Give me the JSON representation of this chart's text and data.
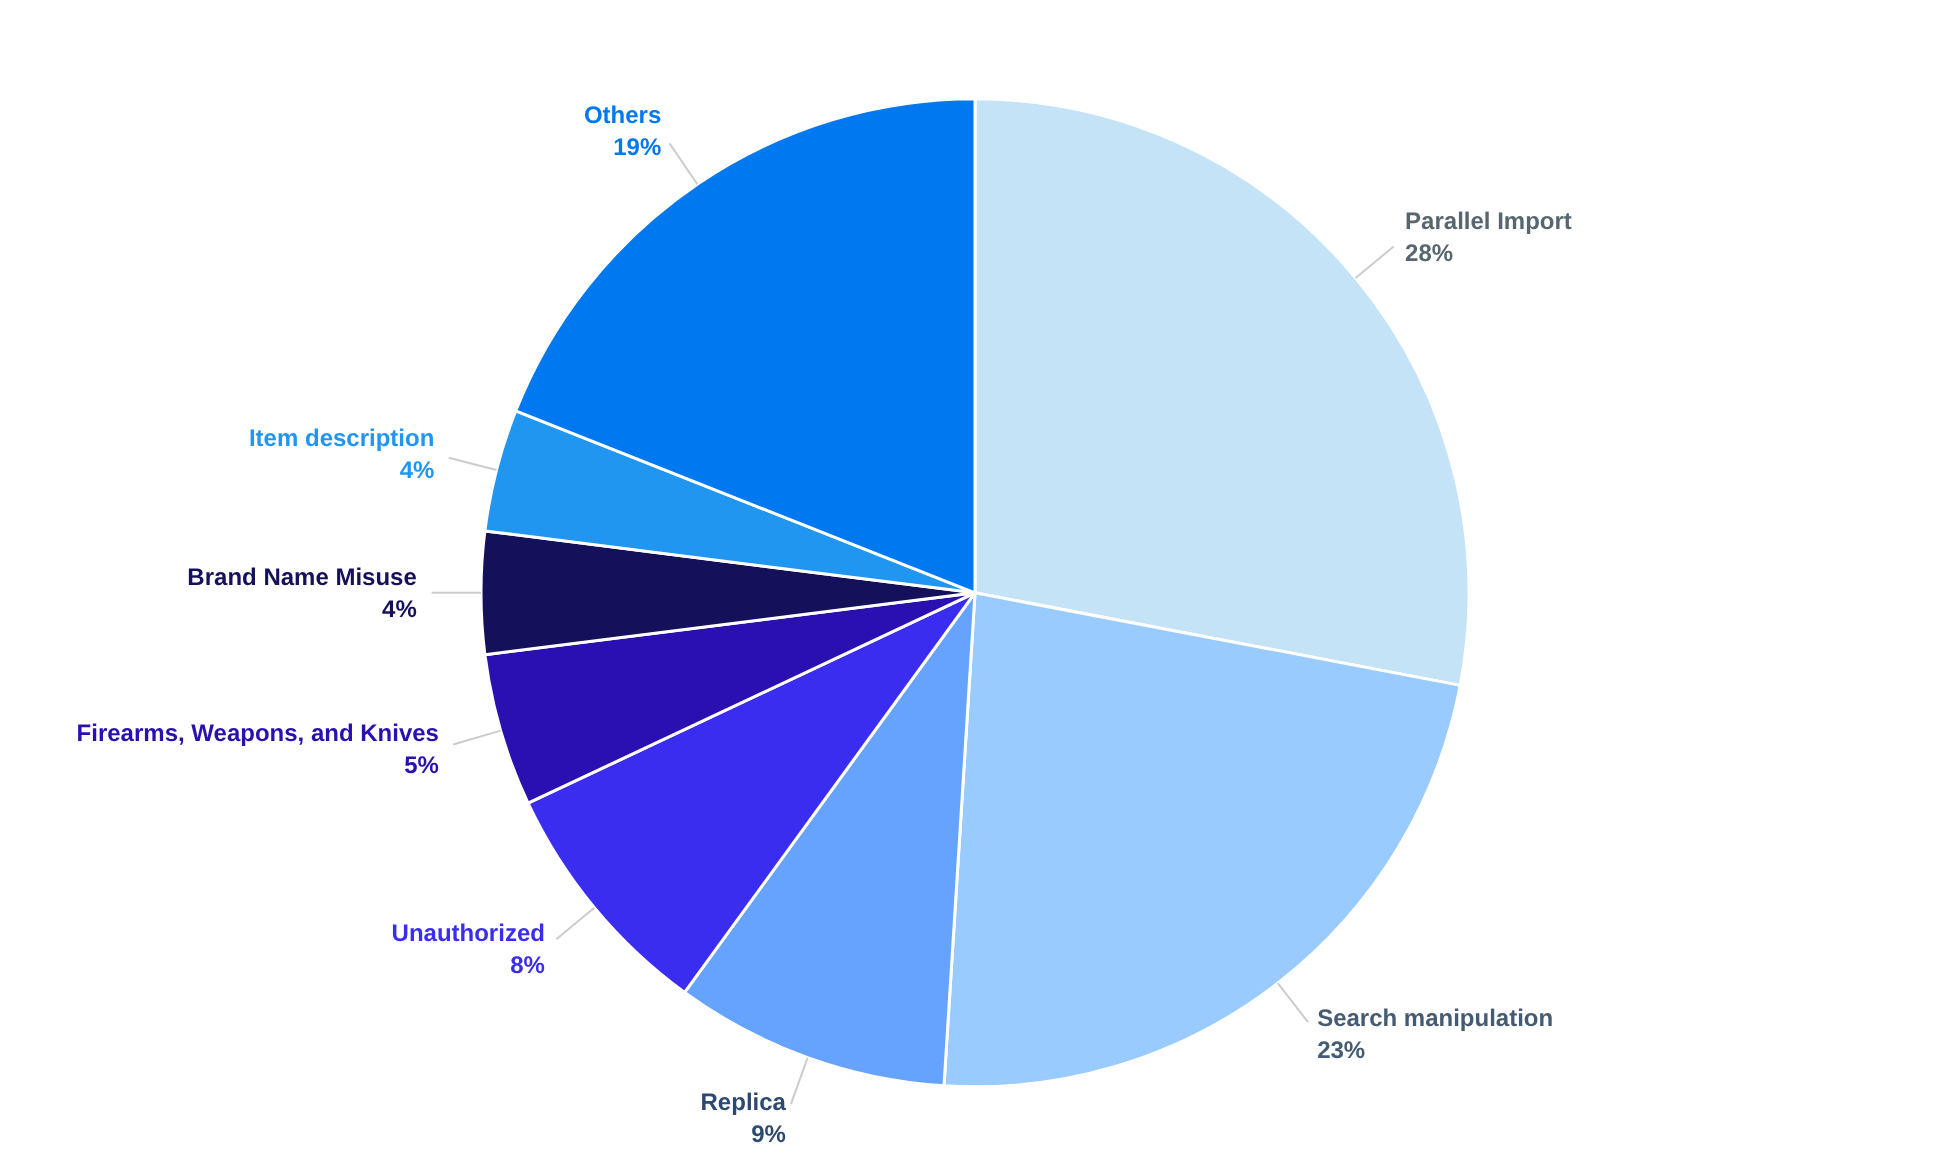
{
  "chart_data": {
    "type": "pie",
    "categories": [
      "Parallel Import",
      "Search manipulation",
      "Replica",
      "Unauthorized",
      "Firearms, Weapons, and Knives",
      "Brand Name Misuse",
      "Item description",
      "Others"
    ],
    "values": [
      28,
      23,
      9,
      8,
      5,
      4,
      4,
      19
    ],
    "colors": [
      "#c5e3f7",
      "#99cbff",
      "#66a3ff",
      "#3a2df0",
      "#2a10b0",
      "#14115a",
      "#2196f0",
      "#0078f0"
    ],
    "value_labels": [
      "28%",
      "23%",
      "9%",
      "8%",
      "5%",
      "4%",
      "4%",
      "19%"
    ]
  }
}
